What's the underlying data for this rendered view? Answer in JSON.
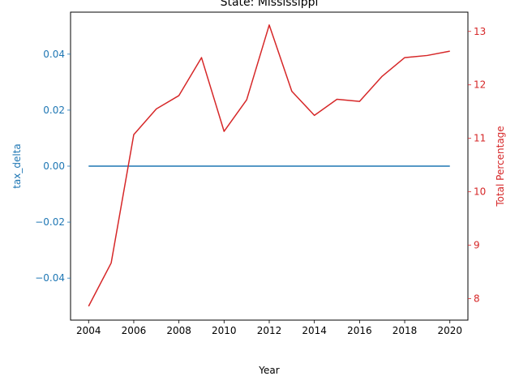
{
  "chart_data": {
    "type": "line",
    "title": "State: Mississippi",
    "xlabel": "Year",
    "ylabel_left": "tax_delta",
    "ylabel_right": "Total Percentage",
    "xlim": [
      2003.2,
      2020.8
    ],
    "ylim_left": [
      -0.055,
      0.055
    ],
    "ylim_right": [
      7.6,
      13.36
    ],
    "x_ticks": [
      2004,
      2006,
      2008,
      2010,
      2012,
      2014,
      2016,
      2018,
      2020
    ],
    "x_tick_labels": [
      "2004",
      "2006",
      "2008",
      "2010",
      "2012",
      "2014",
      "2016",
      "2018",
      "2020"
    ],
    "y_left_ticks": [
      -0.04,
      -0.02,
      0.0,
      0.02,
      0.04
    ],
    "y_left_tick_labels": [
      "−0.04",
      "−0.02",
      "0.00",
      "0.02",
      "0.04"
    ],
    "y_right_ticks": [
      8,
      9,
      10,
      11,
      12,
      13
    ],
    "y_right_tick_labels": [
      "8",
      "9",
      "10",
      "11",
      "12",
      "13"
    ],
    "x": [
      2004,
      2005,
      2006,
      2007,
      2008,
      2009,
      2010,
      2011,
      2012,
      2013,
      2014,
      2015,
      2016,
      2017,
      2018,
      2019,
      2020
    ],
    "series": [
      {
        "axis": "left",
        "color": "#1f77b4",
        "values": [
          0,
          0,
          0,
          0,
          0,
          0,
          0,
          0,
          0,
          0,
          0,
          0,
          0,
          0,
          0,
          0,
          0
        ]
      },
      {
        "axis": "right",
        "color": "#d62728",
        "values": [
          7.86,
          8.67,
          11.07,
          11.55,
          11.8,
          12.51,
          11.13,
          11.72,
          13.12,
          11.88,
          11.43,
          11.73,
          11.69,
          12.16,
          12.51,
          12.55,
          12.63
        ]
      }
    ],
    "grid": false,
    "legend": "none"
  }
}
